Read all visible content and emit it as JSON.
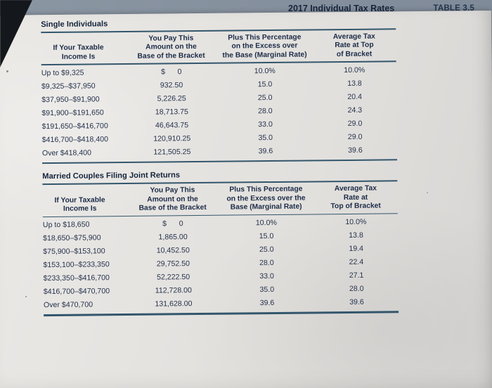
{
  "header": {
    "title": "2017 Individual Tax Rates",
    "table_label": "TABLE 3.5"
  },
  "tables": [
    {
      "section_title": "Single Individuals",
      "columns": [
        "If Your Taxable\nIncome Is",
        "You Pay This\nAmount on the\nBase of the Bracket",
        "Plus This Percentage\non the Excess over\nthe Base (Marginal Rate)",
        "Average Tax\nRate at Top\nof Bracket"
      ],
      "rows": [
        [
          "Up to $9,325",
          "$      0",
          "10.0%",
          "10.0%"
        ],
        [
          "$9,325–$37,950",
          "932.50",
          "15.0",
          "13.8"
        ],
        [
          "$37,950–$91,900",
          "5,226.25",
          "25.0",
          "20.4"
        ],
        [
          "$91,900–$191,650",
          "18,713.75",
          "28.0",
          "24.3"
        ],
        [
          "$191,650–$416,700",
          "46,643.75",
          "33.0",
          "29.0"
        ],
        [
          "$416,700–$418,400",
          "120,910.25",
          "35.0",
          "29.0"
        ],
        [
          "Over $418,400",
          "121,505.25",
          "39.6",
          "39.6"
        ]
      ]
    },
    {
      "section_title": "Married Couples Filing Joint Returns",
      "columns": [
        "If Your Taxable\nIncome Is",
        "You Pay This\nAmount on the\nBase of the Bracket",
        "Plus This Percentage\non the Excess over the\nBase (Marginal Rate)",
        "Average Tax\nRate at\nTop of Bracket"
      ],
      "rows": [
        [
          "Up to $18,650",
          "$      0",
          "10.0%",
          "10.0%"
        ],
        [
          "$18,650–$75,900",
          "1,865.00",
          "15.0",
          "13.8"
        ],
        [
          "$75,900–$153,100",
          "10,452.50",
          "25.0",
          "19.4"
        ],
        [
          "$153,100–$233,350",
          "29,752.50",
          "28.0",
          "22.4"
        ],
        [
          "$233,350–$416,700",
          "52,222.50",
          "33.0",
          "27.1"
        ],
        [
          "$416,700–$470,700",
          "112,728.00",
          "35.0",
          "28.0"
        ],
        [
          "Over $470,700",
          "131,628.00",
          "39.6",
          "39.6"
        ]
      ]
    }
  ]
}
